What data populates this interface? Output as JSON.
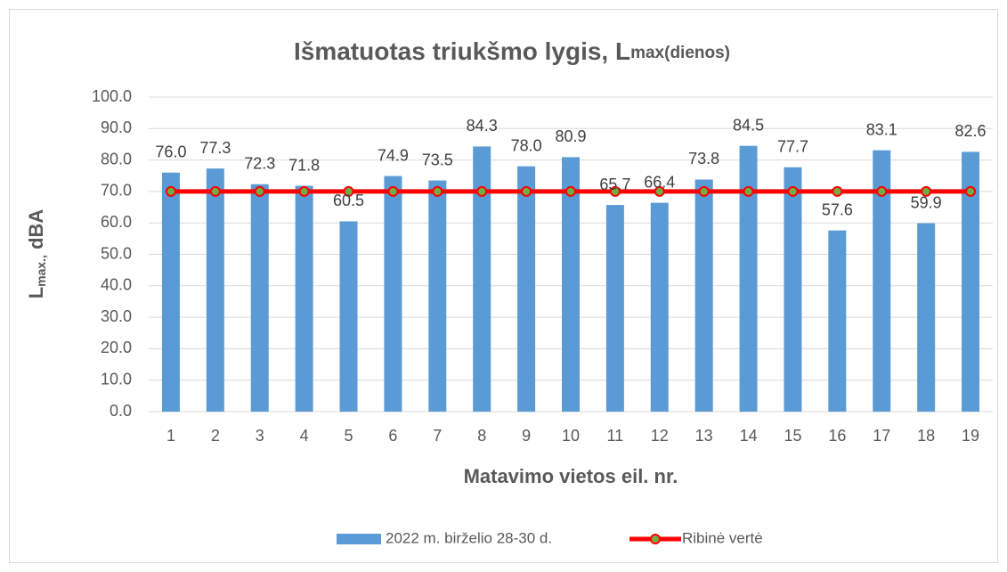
{
  "chart_data": {
    "type": "bar",
    "title": "Išmatuotas triukšmo lygis, L",
    "title_suffix": "max(dienos)",
    "y_label": "L",
    "y_label_sub": "max.,",
    "y_label_suffix": " dBA",
    "x_label": "Matavimo vietos eil. nr.",
    "categories": [
      "1",
      "2",
      "3",
      "4",
      "5",
      "6",
      "7",
      "8",
      "9",
      "10",
      "11",
      "12",
      "13",
      "14",
      "15",
      "16",
      "17",
      "18",
      "19"
    ],
    "series": [
      {
        "name": "2022 m. birželio 28-30 d.",
        "type": "bar",
        "color": "#5b9bd5",
        "values": [
          76.0,
          77.3,
          72.3,
          71.8,
          60.5,
          74.9,
          73.5,
          84.3,
          78.0,
          80.9,
          65.7,
          66.4,
          73.8,
          84.5,
          77.7,
          57.6,
          83.1,
          59.9,
          82.6
        ],
        "value_labels": [
          "76.0",
          "77.3",
          "72.3",
          "71.8",
          "60.5",
          "74.9",
          "73.5",
          "84.3",
          "78.0",
          "80.9",
          "65.7",
          "66.4",
          "73.8",
          "84.5",
          "77.7",
          "57.6",
          "83.1",
          "59.9",
          "82.6"
        ]
      },
      {
        "name": "Ribinė vertė",
        "type": "line",
        "color": "#ff0000",
        "marker_color": "#70ad47",
        "values": [
          70,
          70,
          70,
          70,
          70,
          70,
          70,
          70,
          70,
          70,
          70,
          70,
          70,
          70,
          70,
          70,
          70,
          70,
          70
        ]
      }
    ],
    "ylim": [
      0,
      100
    ],
    "yticks": [
      {
        "value": 0,
        "label": "0.0"
      },
      {
        "value": 10,
        "label": "10.0"
      },
      {
        "value": 20,
        "label": "20.0"
      },
      {
        "value": 30,
        "label": "30.0"
      },
      {
        "value": 40,
        "label": "40.0"
      },
      {
        "value": 50,
        "label": "50.0"
      },
      {
        "value": 60,
        "label": "60.0"
      },
      {
        "value": 70,
        "label": "70.0"
      },
      {
        "value": 80,
        "label": "80.0"
      },
      {
        "value": 90,
        "label": "90.0"
      },
      {
        "value": 100,
        "label": "100.0"
      }
    ],
    "grid": true,
    "legend": "bottom"
  }
}
